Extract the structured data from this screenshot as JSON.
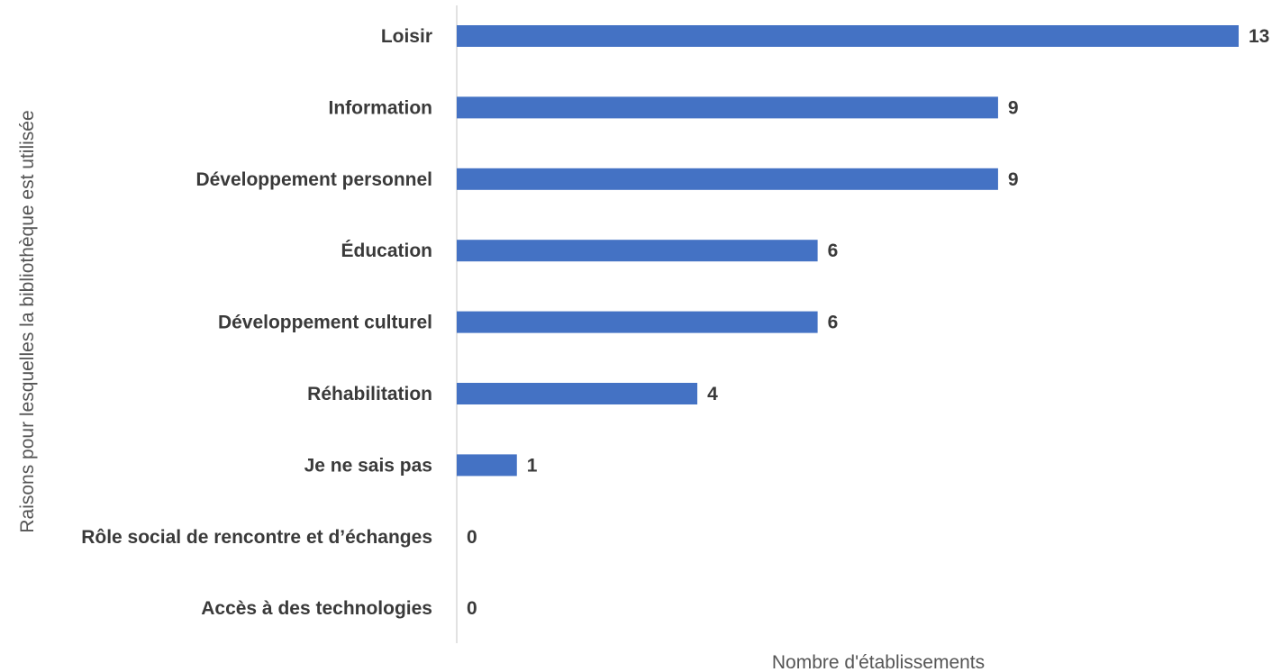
{
  "chart_data": {
    "type": "bar",
    "orientation": "horizontal",
    "categories": [
      "Loisir",
      "Information",
      "Développement personnel",
      "Éducation",
      "Développement culturel",
      "Réhabilitation",
      "Je ne sais pas",
      "Rôle social de rencontre et d’échanges",
      "Accès à des technologies"
    ],
    "values": [
      13,
      9,
      9,
      6,
      6,
      4,
      1,
      0,
      0
    ],
    "value_labels": [
      "13",
      "9",
      "9",
      "6",
      "6",
      "4",
      "1",
      "0",
      "0"
    ],
    "xlabel": "Nombre d'établissements",
    "ylabel": "Raisons pour lesquelles la bibliothèque est utilisée",
    "xlim": [
      0,
      13
    ],
    "grid": false,
    "legend": "none",
    "bar_color": "#4472C4",
    "axis_color": "#d9d9d9"
  }
}
